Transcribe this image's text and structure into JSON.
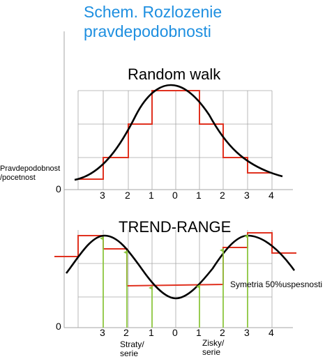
{
  "title": {
    "line1": "Schem. Rozlozenie",
    "line2": "pravdepodobnosti"
  },
  "y_axis_label": {
    "line1": "Pravdepodobnost",
    "line2": "/pocetnost"
  },
  "top_panel": {
    "heading": "Random walk",
    "zero_label": "0",
    "ticks": [
      "3",
      "2",
      "1",
      "0",
      "1",
      "2",
      "3",
      "4"
    ]
  },
  "bottom_panel": {
    "heading": "TREND-RANGE",
    "zero_label": "0",
    "ticks": [
      "3",
      "2",
      "1",
      "0",
      "1",
      "2",
      "3",
      "4"
    ],
    "note": "Symetria 50%uspesnosti",
    "losses_label": {
      "line1": "Straty/",
      "line2": "serie"
    },
    "gains_label": {
      "line1": "Zisky/",
      "line2": "serie"
    }
  },
  "colors": {
    "title": "#1e8fe0",
    "step_line": "#e0311f",
    "curve": "#000000",
    "arrow": "#8cc63f",
    "grid": "#a6a6a6"
  }
}
